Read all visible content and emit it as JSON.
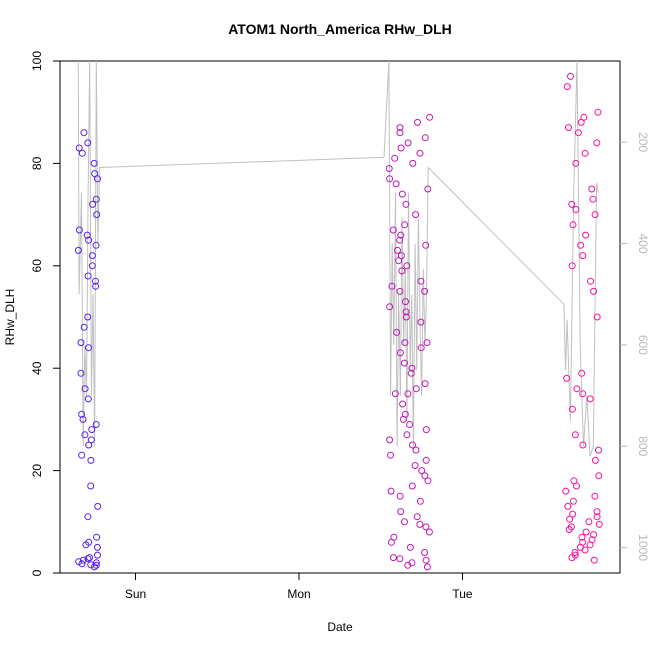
{
  "chart_data": {
    "type": "scatter",
    "title": "ATOM1 North_America RHw_DLH",
    "xlabel": "Date",
    "ylabel": "RHw_DLH",
    "x_ticks": [
      "Sun",
      "Mon",
      "Tue"
    ],
    "x_tick_values": [
      0,
      1,
      2
    ],
    "x_range_days": [
      -0.38,
      2.85
    ],
    "ylim": [
      0,
      100
    ],
    "y_ticks": [
      0,
      20,
      40,
      60,
      80,
      100
    ],
    "y2_ticks": [
      200,
      400,
      600,
      800,
      1000
    ],
    "y2_range": [
      40,
      1050
    ],
    "y2_reversed": true,
    "grid": false,
    "point_colors": {
      "start": "#5522ee",
      "end": "#ff1199"
    },
    "secondary_line_color": "#c0c0c0",
    "point_groups": [
      {
        "x_range": [
          -0.35,
          -0.23
        ],
        "values": [
          2,
          2.5,
          1.5,
          3,
          1.8,
          2.2,
          1.2,
          3.5,
          5,
          6,
          7,
          11,
          13,
          17,
          22,
          23,
          25,
          27,
          29,
          31,
          34,
          36,
          39,
          44,
          45,
          48,
          50,
          56,
          57,
          58,
          60,
          62,
          63,
          64,
          66,
          67,
          70,
          72,
          73,
          77,
          78,
          80,
          82,
          83,
          84,
          86,
          30,
          26,
          28,
          65,
          5.5,
          2.8,
          1.6
        ]
      },
      {
        "x_range": [
          1.55,
          1.8
        ],
        "values": [
          1.2,
          1.5,
          2,
          2.5,
          3,
          4,
          5,
          6,
          7,
          8,
          9,
          10,
          11,
          12,
          14,
          15,
          16,
          18,
          19,
          20,
          21,
          22,
          23,
          24,
          25,
          26,
          28,
          29,
          30,
          31,
          33,
          35,
          36,
          37,
          39,
          40,
          41,
          43,
          44,
          45,
          47,
          49,
          50,
          51,
          52,
          53,
          55,
          56,
          57,
          59,
          60,
          61,
          62,
          63,
          64,
          65,
          66,
          67,
          68,
          70,
          72,
          74,
          75,
          76,
          77,
          79,
          80,
          81,
          82,
          83,
          84,
          85,
          86,
          87,
          88,
          89,
          9.5,
          17,
          27,
          35,
          45,
          55,
          2.8
        ]
      },
      {
        "x_range": [
          2.62,
          2.84
        ],
        "values": [
          2.5,
          3,
          3.5,
          4,
          4.5,
          5,
          5.5,
          6,
          6.5,
          7,
          7.5,
          8,
          8.5,
          9,
          9.5,
          10,
          10.5,
          11,
          11.5,
          12,
          13,
          14,
          15,
          16,
          17,
          18,
          19,
          25,
          27,
          32,
          34,
          35,
          36,
          39,
          50,
          55,
          57,
          60,
          62,
          64,
          66,
          68,
          70,
          71,
          72,
          73,
          75,
          80,
          82,
          84,
          86,
          87,
          88,
          89,
          90,
          95,
          97,
          24,
          22,
          38
        ]
      }
    ],
    "secondary_line": {
      "x": [
        -0.35,
        -0.345,
        -0.33,
        -0.32,
        -0.31,
        -0.3,
        -0.29,
        -0.28,
        -0.27,
        -0.26,
        -0.25,
        -0.24,
        -0.23,
        -0.22,
        1.52,
        1.55,
        1.56,
        1.57,
        1.58,
        1.59,
        1.6,
        1.61,
        1.62,
        1.63,
        1.64,
        1.65,
        1.66,
        1.67,
        1.68,
        1.69,
        1.7,
        1.71,
        1.72,
        1.73,
        1.74,
        1.75,
        1.76,
        1.77,
        1.78,
        1.79,
        2.62,
        2.63,
        2.64,
        2.66,
        2.68,
        2.7,
        2.72,
        2.74,
        2.76,
        2.78,
        2.8,
        2.82,
        2.83
      ],
      "y": [
        40,
        500,
        300,
        800,
        600,
        700,
        300,
        40,
        700,
        500,
        800,
        40,
        400,
        250,
        230,
        40,
        700,
        400,
        600,
        300,
        800,
        500,
        700,
        350,
        600,
        450,
        750,
        300,
        650,
        500,
        800,
        400,
        650,
        350,
        550,
        700,
        450,
        600,
        500,
        250,
        520,
        650,
        550,
        750,
        300,
        40,
        600,
        800,
        700,
        820,
        800,
        280,
        300
      ]
    }
  }
}
